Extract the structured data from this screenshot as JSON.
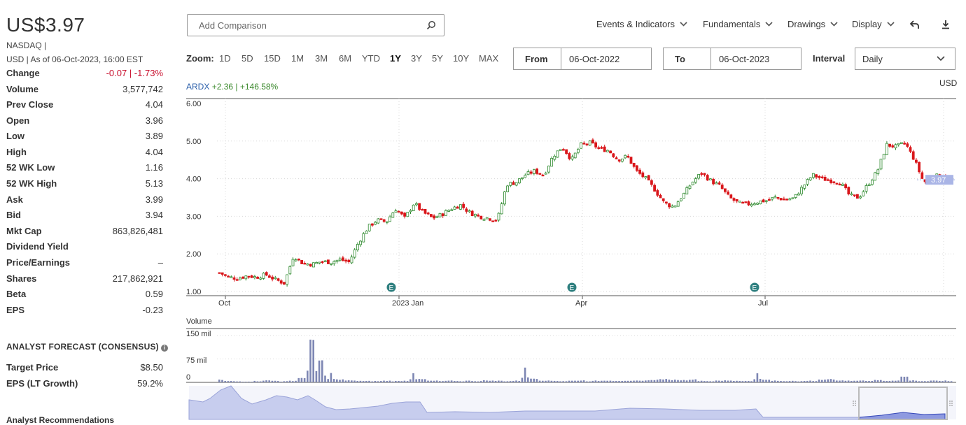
{
  "quote": {
    "price": "US$3.97",
    "exchange": "NASDAQ |",
    "as_of": "USD | As of 06-Oct-2023, 16:00 EST"
  },
  "stats": [
    {
      "label": "Change",
      "value": "-0.07 | -1.73%",
      "negative": true
    },
    {
      "label": "Volume",
      "value": "3,577,742"
    },
    {
      "label": "Prev Close",
      "value": "4.04"
    },
    {
      "label": "Open",
      "value": "3.96"
    },
    {
      "label": "Low",
      "value": "3.89"
    },
    {
      "label": "High",
      "value": "4.04"
    },
    {
      "label": "52 WK Low",
      "value": "1.16"
    },
    {
      "label": "52 WK High",
      "value": "5.13"
    },
    {
      "label": "Ask",
      "value": "3.99"
    },
    {
      "label": "Bid",
      "value": "3.94"
    },
    {
      "label": "Mkt Cap",
      "value": "863,826,481"
    },
    {
      "label": "Dividend Yield",
      "value": ""
    },
    {
      "label": "Price/Earnings",
      "value": "–"
    },
    {
      "label": "Shares",
      "value": "217,862,921"
    },
    {
      "label": "Beta",
      "value": "0.59"
    },
    {
      "label": "EPS",
      "value": "-0.23"
    }
  ],
  "forecast": {
    "title": "ANALYST FORECAST (CONSENSUS)",
    "rows": [
      {
        "label": "Target Price",
        "value": "$8.50"
      },
      {
        "label": "EPS (LT Growth)",
        "value": "59.2%"
      }
    ],
    "next_section": "Analyst Recommendations"
  },
  "toolbar": {
    "search_placeholder": "Add Comparison",
    "menus": [
      "Events & Indicators",
      "Fundamentals",
      "Drawings",
      "Display"
    ],
    "zoom_label": "Zoom:",
    "zoom_options": [
      "1D",
      "5D",
      "15D",
      "1M",
      "3M",
      "6M",
      "YTD",
      "1Y",
      "3Y",
      "5Y",
      "10Y",
      "MAX"
    ],
    "zoom_active": "1Y",
    "from_label": "From",
    "from_value": "06-Oct-2022",
    "to_label": "To",
    "to_value": "06-Oct-2023",
    "interval_label": "Interval",
    "interval_value": "Daily"
  },
  "chart_header": {
    "symbol": "ARDX",
    "change": "+2.36 | +146.58%",
    "currency": "USD",
    "volume_label": "Volume"
  },
  "chart_data": {
    "type": "candlestick",
    "y_ticks": [
      "6.00",
      "5.00",
      "4.00",
      "3.00",
      "2.00",
      "1.00"
    ],
    "ylim": [
      1.0,
      6.0
    ],
    "x_ticks": [
      "Oct",
      "2023 Jan",
      "Apr",
      "Jul"
    ],
    "last_price_label": "3.97",
    "event_markers": [
      "E",
      "E",
      "E"
    ],
    "volume_ticks": [
      "150 mil",
      "75 mil",
      "0"
    ],
    "price_path_weekly": [
      1.5,
      1.38,
      1.35,
      1.42,
      1.38,
      1.45,
      1.32,
      1.22,
      1.95,
      1.75,
      1.72,
      1.8,
      1.78,
      1.85,
      1.78,
      2.3,
      2.7,
      2.9,
      2.85,
      3.2,
      2.95,
      3.35,
      3.1,
      2.95,
      3.05,
      3.2,
      3.3,
      3.1,
      3.0,
      2.95,
      2.9,
      3.85,
      3.9,
      4.1,
      4.2,
      4.1,
      4.6,
      4.85,
      4.5,
      4.9,
      4.95,
      4.8,
      4.75,
      4.5,
      4.6,
      4.2,
      4.0,
      3.7,
      3.35,
      3.25,
      3.55,
      3.9,
      4.15,
      3.95,
      3.8,
      3.5,
      3.35,
      3.32,
      3.38,
      3.42,
      3.5,
      3.45,
      3.48,
      3.8,
      4.1,
      4.0,
      3.95,
      3.9,
      3.55,
      3.5,
      3.85,
      4.2,
      4.9,
      4.85,
      4.95,
      4.5,
      3.9,
      4.05,
      4.1,
      3.97
    ],
    "volume_mil": [
      8,
      4,
      3,
      3,
      4,
      6,
      5,
      3,
      5,
      14,
      136,
      70,
      30,
      9,
      6,
      5,
      4,
      4,
      5,
      4,
      5,
      30,
      10,
      5,
      4,
      5,
      4,
      5,
      4,
      6,
      5,
      4,
      5,
      48,
      12,
      6,
      5,
      4,
      5,
      6,
      4,
      5,
      6,
      5,
      4,
      5,
      6,
      8,
      10,
      8,
      7,
      9,
      5,
      4,
      5,
      6,
      5,
      4,
      30,
      8,
      5,
      4,
      5,
      4,
      5,
      8,
      10,
      6,
      5,
      6,
      5,
      7,
      5,
      6,
      18,
      6,
      4,
      5,
      5,
      4
    ]
  },
  "colors": {
    "up": "#2f8a2f",
    "down": "#d9161b",
    "accent": "#2b5faa",
    "navigator": "#c7cdee"
  },
  "icons": [
    "search-icon",
    "chevron-down-icon",
    "undo-icon",
    "download-icon",
    "info-icon"
  ]
}
